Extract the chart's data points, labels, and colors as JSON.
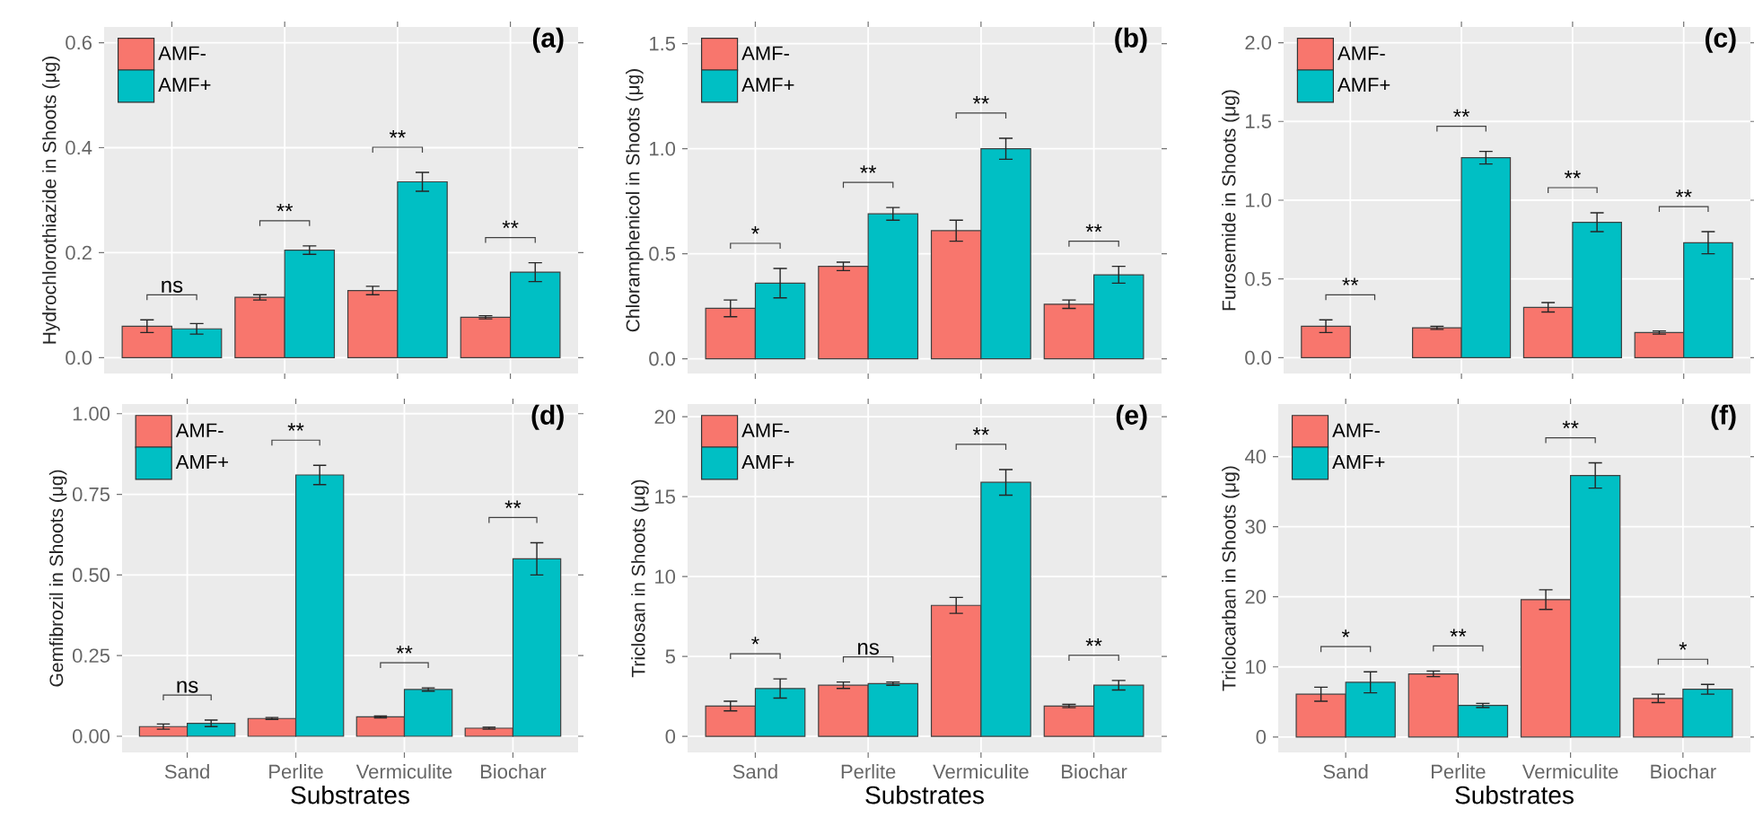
{
  "chart_data": [
    {
      "type": "bar",
      "title": "(a)",
      "ylabel": "Hydrochlorothiazide in Shoots (μg)",
      "categories": [
        null,
        null,
        null,
        null
      ],
      "tick_labels": "y",
      "grid": true,
      "legend": "top left",
      "series": [
        {
          "name": "AMF-",
          "color": "#f8766d",
          "values": [
            0.06,
            0.115,
            0.128,
            0.077
          ],
          "errors": [
            0.012,
            0.005,
            0.008,
            0.003
          ]
        },
        {
          "name": "AMF+",
          "color": "#00bfc4",
          "values": [
            0.055,
            0.205,
            0.335,
            0.163
          ],
          "errors": [
            0.01,
            0.008,
            0.018,
            0.018
          ]
        }
      ],
      "ylim": [
        -0.03,
        0.63
      ],
      "yticks": [
        {
          "value": 0,
          "label": "0.0"
        },
        {
          "value": 0.2,
          "label": "0.2"
        },
        {
          "value": 0.4,
          "label": "0.4"
        },
        {
          "value": 0.6,
          "label": "0.6"
        }
      ],
      "annotations": [
        "ns",
        "**",
        "**",
        "**"
      ]
    },
    {
      "type": "bar",
      "title": "(b)",
      "ylabel": "Chloramphenicol in Shoots (μg)",
      "categories": [
        null,
        null,
        null,
        null
      ],
      "tick_labels": "y",
      "grid": true,
      "legend": "top left",
      "series": [
        {
          "name": "AMF-",
          "color": "#f8766d",
          "values": [
            0.24,
            0.44,
            0.61,
            0.26
          ],
          "errors": [
            0.04,
            0.02,
            0.05,
            0.02
          ]
        },
        {
          "name": "AMF+",
          "color": "#00bfc4",
          "values": [
            0.36,
            0.69,
            1.0,
            0.4
          ],
          "errors": [
            0.07,
            0.03,
            0.05,
            0.04
          ]
        }
      ],
      "ylim": [
        -0.07,
        1.58
      ],
      "yticks": [
        {
          "value": 0,
          "label": "0.0"
        },
        {
          "value": 0.5,
          "label": "0.5"
        },
        {
          "value": 1,
          "label": "1.0"
        },
        {
          "value": 1.5,
          "label": "1.5"
        }
      ],
      "annotations": [
        "*",
        "**",
        "**",
        "**"
      ]
    },
    {
      "type": "bar",
      "title": "(c)",
      "ylabel": "Furosemide in Shoots (μg)",
      "categories": [
        null,
        null,
        null,
        null
      ],
      "tick_labels": "y",
      "grid": true,
      "legend": "top left",
      "series": [
        {
          "name": "AMF-",
          "color": "#f8766d",
          "values": [
            0.2,
            0.19,
            0.32,
            0.16
          ],
          "errors": [
            0.04,
            0.01,
            0.03,
            0.01
          ]
        },
        {
          "name": "AMF+",
          "color": "#00bfc4",
          "values": [
            0,
            1.27,
            0.86,
            0.73
          ],
          "errors": [
            null,
            0.04,
            0.06,
            0.07
          ]
        }
      ],
      "ylim": [
        -0.1,
        2.1
      ],
      "yticks": [
        {
          "value": 0,
          "label": "0.0"
        },
        {
          "value": 0.5,
          "label": "0.5"
        },
        {
          "value": 1,
          "label": "1.0"
        },
        {
          "value": 1.5,
          "label": "1.5"
        },
        {
          "value": 2,
          "label": "2.0"
        }
      ],
      "annotations": [
        "**",
        "**",
        "**",
        "**"
      ]
    },
    {
      "type": "bar",
      "title": "(d)",
      "ylabel": "Gemfibrozil in Shoots (μg)",
      "xlabel": "Substrates",
      "categories": [
        "Sand",
        "Perlite",
        "Vermiculite",
        "Biochar"
      ],
      "grid": true,
      "legend": "top left",
      "series": [
        {
          "name": "AMF-",
          "color": "#f8766d",
          "values": [
            0.03,
            0.055,
            0.06,
            0.025
          ],
          "errors": [
            0.008,
            0.003,
            0.003,
            0.003
          ]
        },
        {
          "name": "AMF+",
          "color": "#00bfc4",
          "values": [
            0.04,
            0.81,
            0.145,
            0.55
          ],
          "errors": [
            0.01,
            0.03,
            0.005,
            0.05
          ]
        }
      ],
      "ylim": [
        -0.05,
        1.03
      ],
      "yticks": [
        {
          "value": 0,
          "label": "0.00"
        },
        {
          "value": 0.25,
          "label": "0.25"
        },
        {
          "value": 0.5,
          "label": "0.50"
        },
        {
          "value": 0.75,
          "label": "0.75"
        },
        {
          "value": 1,
          "label": "1.00"
        }
      ],
      "annotations": [
        "ns",
        "**",
        "**",
        "**"
      ]
    },
    {
      "type": "bar",
      "title": "(e)",
      "ylabel": "Triclosan in Shoots (μg)",
      "xlabel": "Substrates",
      "categories": [
        "Sand",
        "Perlite",
        "Vermiculite",
        "Biochar"
      ],
      "grid": true,
      "legend": "top left",
      "series": [
        {
          "name": "AMF-",
          "color": "#f8766d",
          "values": [
            1.9,
            3.2,
            8.2,
            1.9
          ],
          "errors": [
            0.3,
            0.2,
            0.5,
            0.1
          ]
        },
        {
          "name": "AMF+",
          "color": "#00bfc4",
          "values": [
            3.0,
            3.3,
            15.9,
            3.2
          ],
          "errors": [
            0.6,
            0.1,
            0.8,
            0.3
          ]
        }
      ],
      "ylim": [
        -1,
        20.8
      ],
      "yticks": [
        0,
        5,
        10,
        15,
        20
      ],
      "annotations": [
        "*",
        "ns",
        "**",
        "**"
      ]
    },
    {
      "type": "bar",
      "title": "(f)",
      "ylabel": "Triclocarban in Shoots (μg)",
      "xlabel": "Substrates",
      "categories": [
        "Sand",
        "Perlite",
        "Vermiculite",
        "Biochar"
      ],
      "grid": true,
      "legend": "top left",
      "series": [
        {
          "name": "AMF-",
          "color": "#f8766d",
          "values": [
            6.1,
            9.0,
            19.6,
            5.5
          ],
          "errors": [
            1.0,
            0.4,
            1.4,
            0.6
          ]
        },
        {
          "name": "AMF+",
          "color": "#00bfc4",
          "values": [
            7.8,
            4.5,
            37.3,
            6.8
          ],
          "errors": [
            1.5,
            0.3,
            1.8,
            0.7
          ]
        }
      ],
      "ylim": [
        -2.2,
        47.5
      ],
      "yticks": [
        0,
        10,
        20,
        30,
        40
      ],
      "annotations": [
        "*",
        "**",
        "**",
        "*"
      ]
    }
  ]
}
